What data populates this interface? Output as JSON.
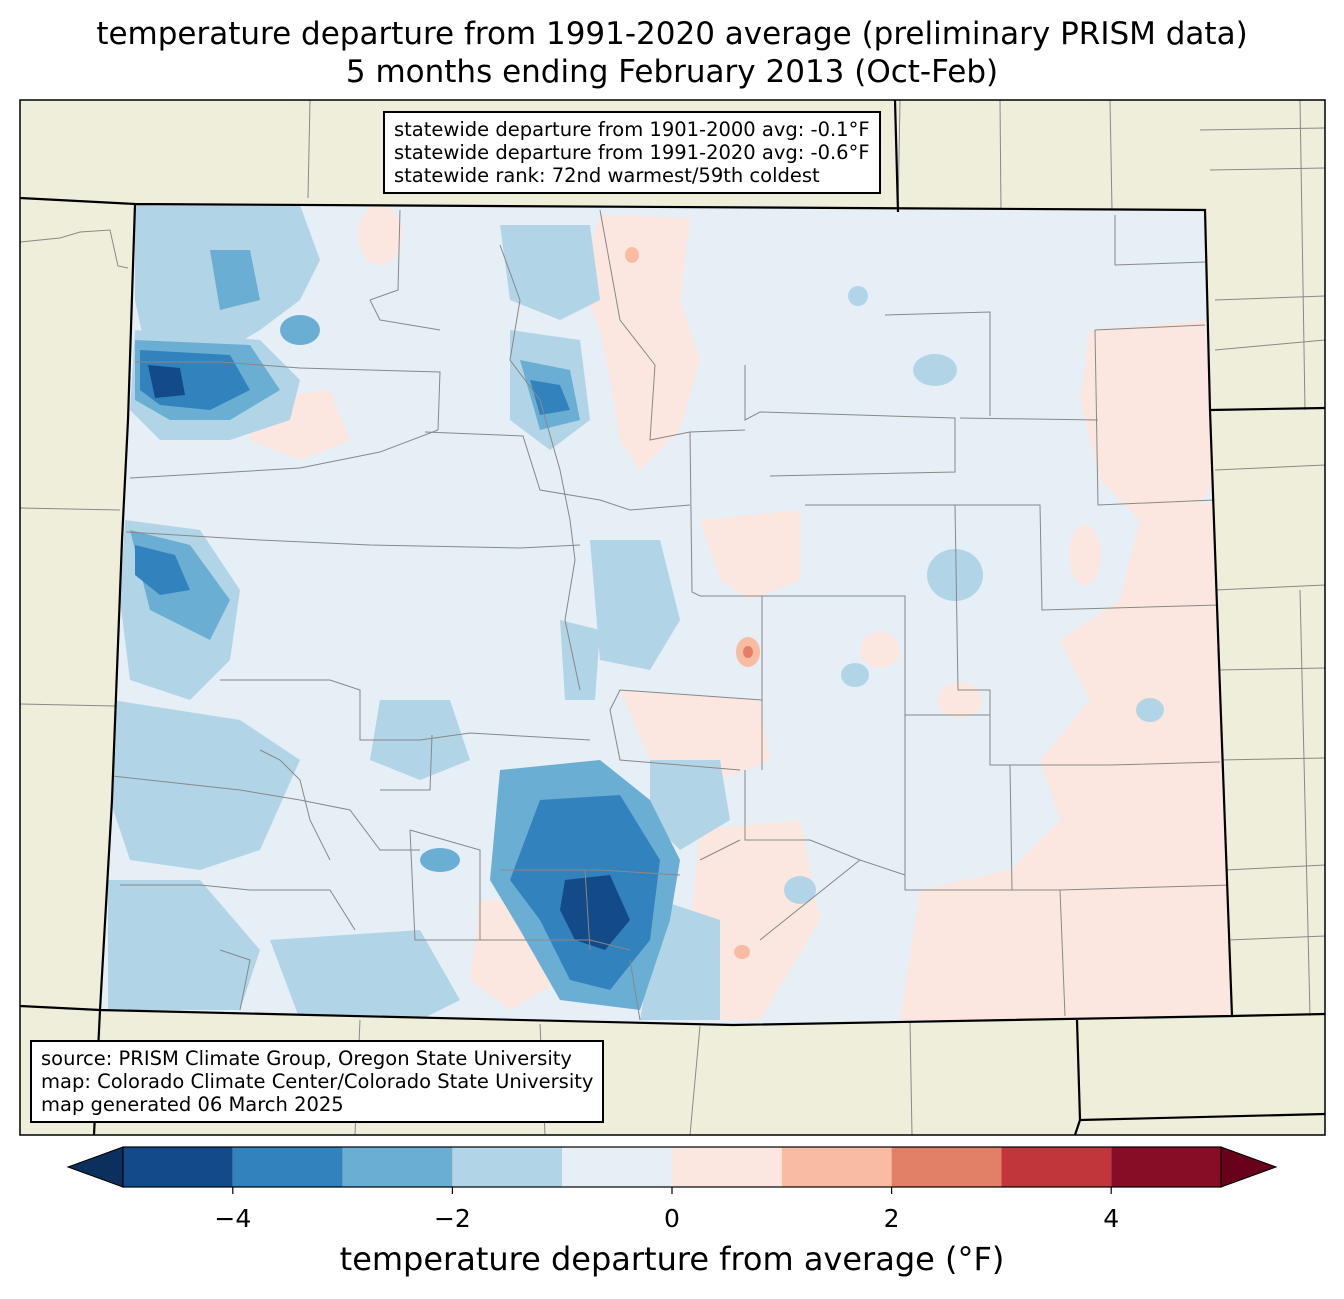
{
  "title": {
    "line1": "temperature departure from 1991-2020 average (preliminary PRISM data)",
    "line2": "5 months ending February 2013 (Oct-Feb)"
  },
  "stats_box": {
    "lines": [
      "statewide departure from 1901-2000 avg: -0.1°F",
      "statewide departure from 1991-2020 avg: -0.6°F",
      "statewide rank: 72nd warmest/59th coldest"
    ]
  },
  "source_box": {
    "lines": [
      "source: PRISM Climate Group, Oregon State University",
      "map: Colorado Climate Center/Colorado State University",
      "map generated 06 March 2025"
    ]
  },
  "colorbar": {
    "label": "temperature departure from average (°F)",
    "ticks": [
      "−4",
      "−2",
      "0",
      "2",
      "4"
    ],
    "tick_values": [
      -4,
      -2,
      0,
      2,
      4
    ],
    "range": [
      -5,
      5
    ],
    "bins": [
      {
        "from": -5,
        "to": -4,
        "color": "#134b88"
      },
      {
        "from": -4,
        "to": -3,
        "color": "#3282bd"
      },
      {
        "from": -3,
        "to": -2,
        "color": "#6aafd3"
      },
      {
        "from": -2,
        "to": -1,
        "color": "#b1d5e7"
      },
      {
        "from": -1,
        "to": 0,
        "color": "#e6eef6"
      },
      {
        "from": 0,
        "to": 1,
        "color": "#fbe7df"
      },
      {
        "from": 1,
        "to": 2,
        "color": "#f9bba2"
      },
      {
        "from": 2,
        "to": 3,
        "color": "#e17f67"
      },
      {
        "from": 3,
        "to": 4,
        "color": "#c0363b"
      },
      {
        "from": 4,
        "to": 5,
        "color": "#870c25"
      }
    ],
    "under_color": "#0b305d",
    "over_color": "#68021b"
  },
  "map_colors": {
    "land": "#efeedb",
    "border": "#000000",
    "county_line": "#888888"
  }
}
